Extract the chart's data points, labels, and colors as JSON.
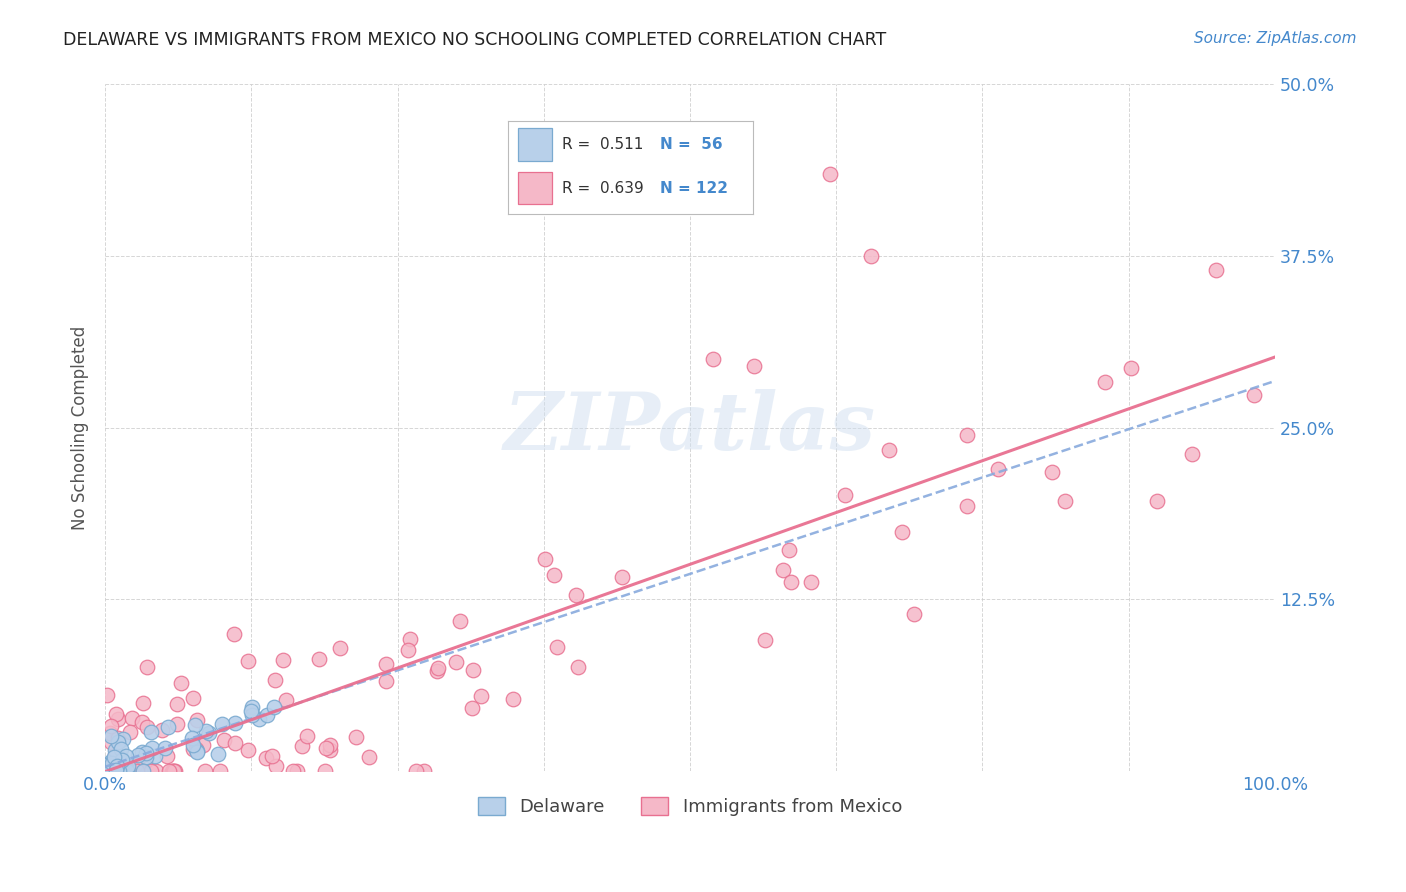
{
  "title": "DELAWARE VS IMMIGRANTS FROM MEXICO NO SCHOOLING COMPLETED CORRELATION CHART",
  "source": "Source: ZipAtlas.com",
  "ylabel": "No Schooling Completed",
  "xlim": [
    0,
    1.0
  ],
  "ylim": [
    0,
    0.5
  ],
  "xtick_pos": [
    0.0,
    0.125,
    0.25,
    0.375,
    0.5,
    0.625,
    0.75,
    0.875,
    1.0
  ],
  "xticklabels": [
    "0.0%",
    "",
    "",
    "",
    "",
    "",
    "",
    "",
    "100.0%"
  ],
  "ytick_pos": [
    0.0,
    0.125,
    0.25,
    0.375,
    0.5
  ],
  "yticklabels_right": [
    "",
    "12.5%",
    "25.0%",
    "37.5%",
    "50.0%"
  ],
  "legend_r1": "R =  0.511",
  "legend_n1": "N =  56",
  "legend_r2": "R =  0.639",
  "legend_n2": "N = 122",
  "delaware_face": "#b8d0ea",
  "delaware_edge": "#7aaad0",
  "mexico_face": "#f5b8c8",
  "mexico_edge": "#e87090",
  "trendline_del_color": "#88aadd",
  "trendline_mex_color": "#e87090",
  "grid_color": "#cccccc",
  "title_color": "#222222",
  "ylabel_color": "#555555",
  "tick_color": "#4488cc",
  "source_color": "#4488cc",
  "watermark_color": "#d0dff0",
  "background_color": "#ffffff"
}
